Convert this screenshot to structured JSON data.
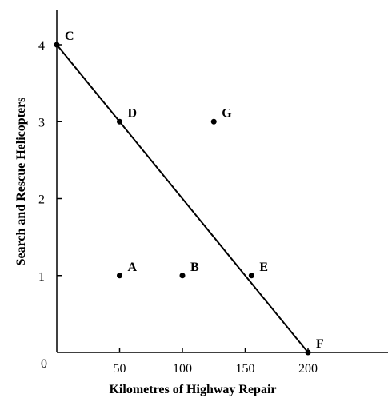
{
  "chart_data": {
    "type": "scatter",
    "title": "",
    "xlabel": "Kilometres of Highway Repair",
    "ylabel": "Search and Rescue Helicopters",
    "xlim": [
      0,
      250
    ],
    "ylim": [
      0,
      4.4
    ],
    "origin_label": "0",
    "x_ticks": [
      {
        "value": 50,
        "label": "50"
      },
      {
        "value": 100,
        "label": "100"
      },
      {
        "value": 150,
        "label": "150"
      },
      {
        "value": 200,
        "label": "200"
      }
    ],
    "y_ticks": [
      {
        "value": 1,
        "label": "1"
      },
      {
        "value": 2,
        "label": "2"
      },
      {
        "value": 3,
        "label": "3"
      },
      {
        "value": 4,
        "label": "4"
      }
    ],
    "line": [
      [
        0,
        4
      ],
      [
        200,
        0
      ]
    ],
    "points": [
      {
        "label": "C",
        "x": 0,
        "y": 4
      },
      {
        "label": "D",
        "x": 50,
        "y": 3
      },
      {
        "label": "G",
        "x": 125,
        "y": 3
      },
      {
        "label": "A",
        "x": 50,
        "y": 1
      },
      {
        "label": "B",
        "x": 100,
        "y": 1
      },
      {
        "label": "E",
        "x": 155,
        "y": 1
      },
      {
        "label": "F",
        "x": 200,
        "y": 0
      }
    ],
    "grid": false,
    "legend": "none"
  }
}
